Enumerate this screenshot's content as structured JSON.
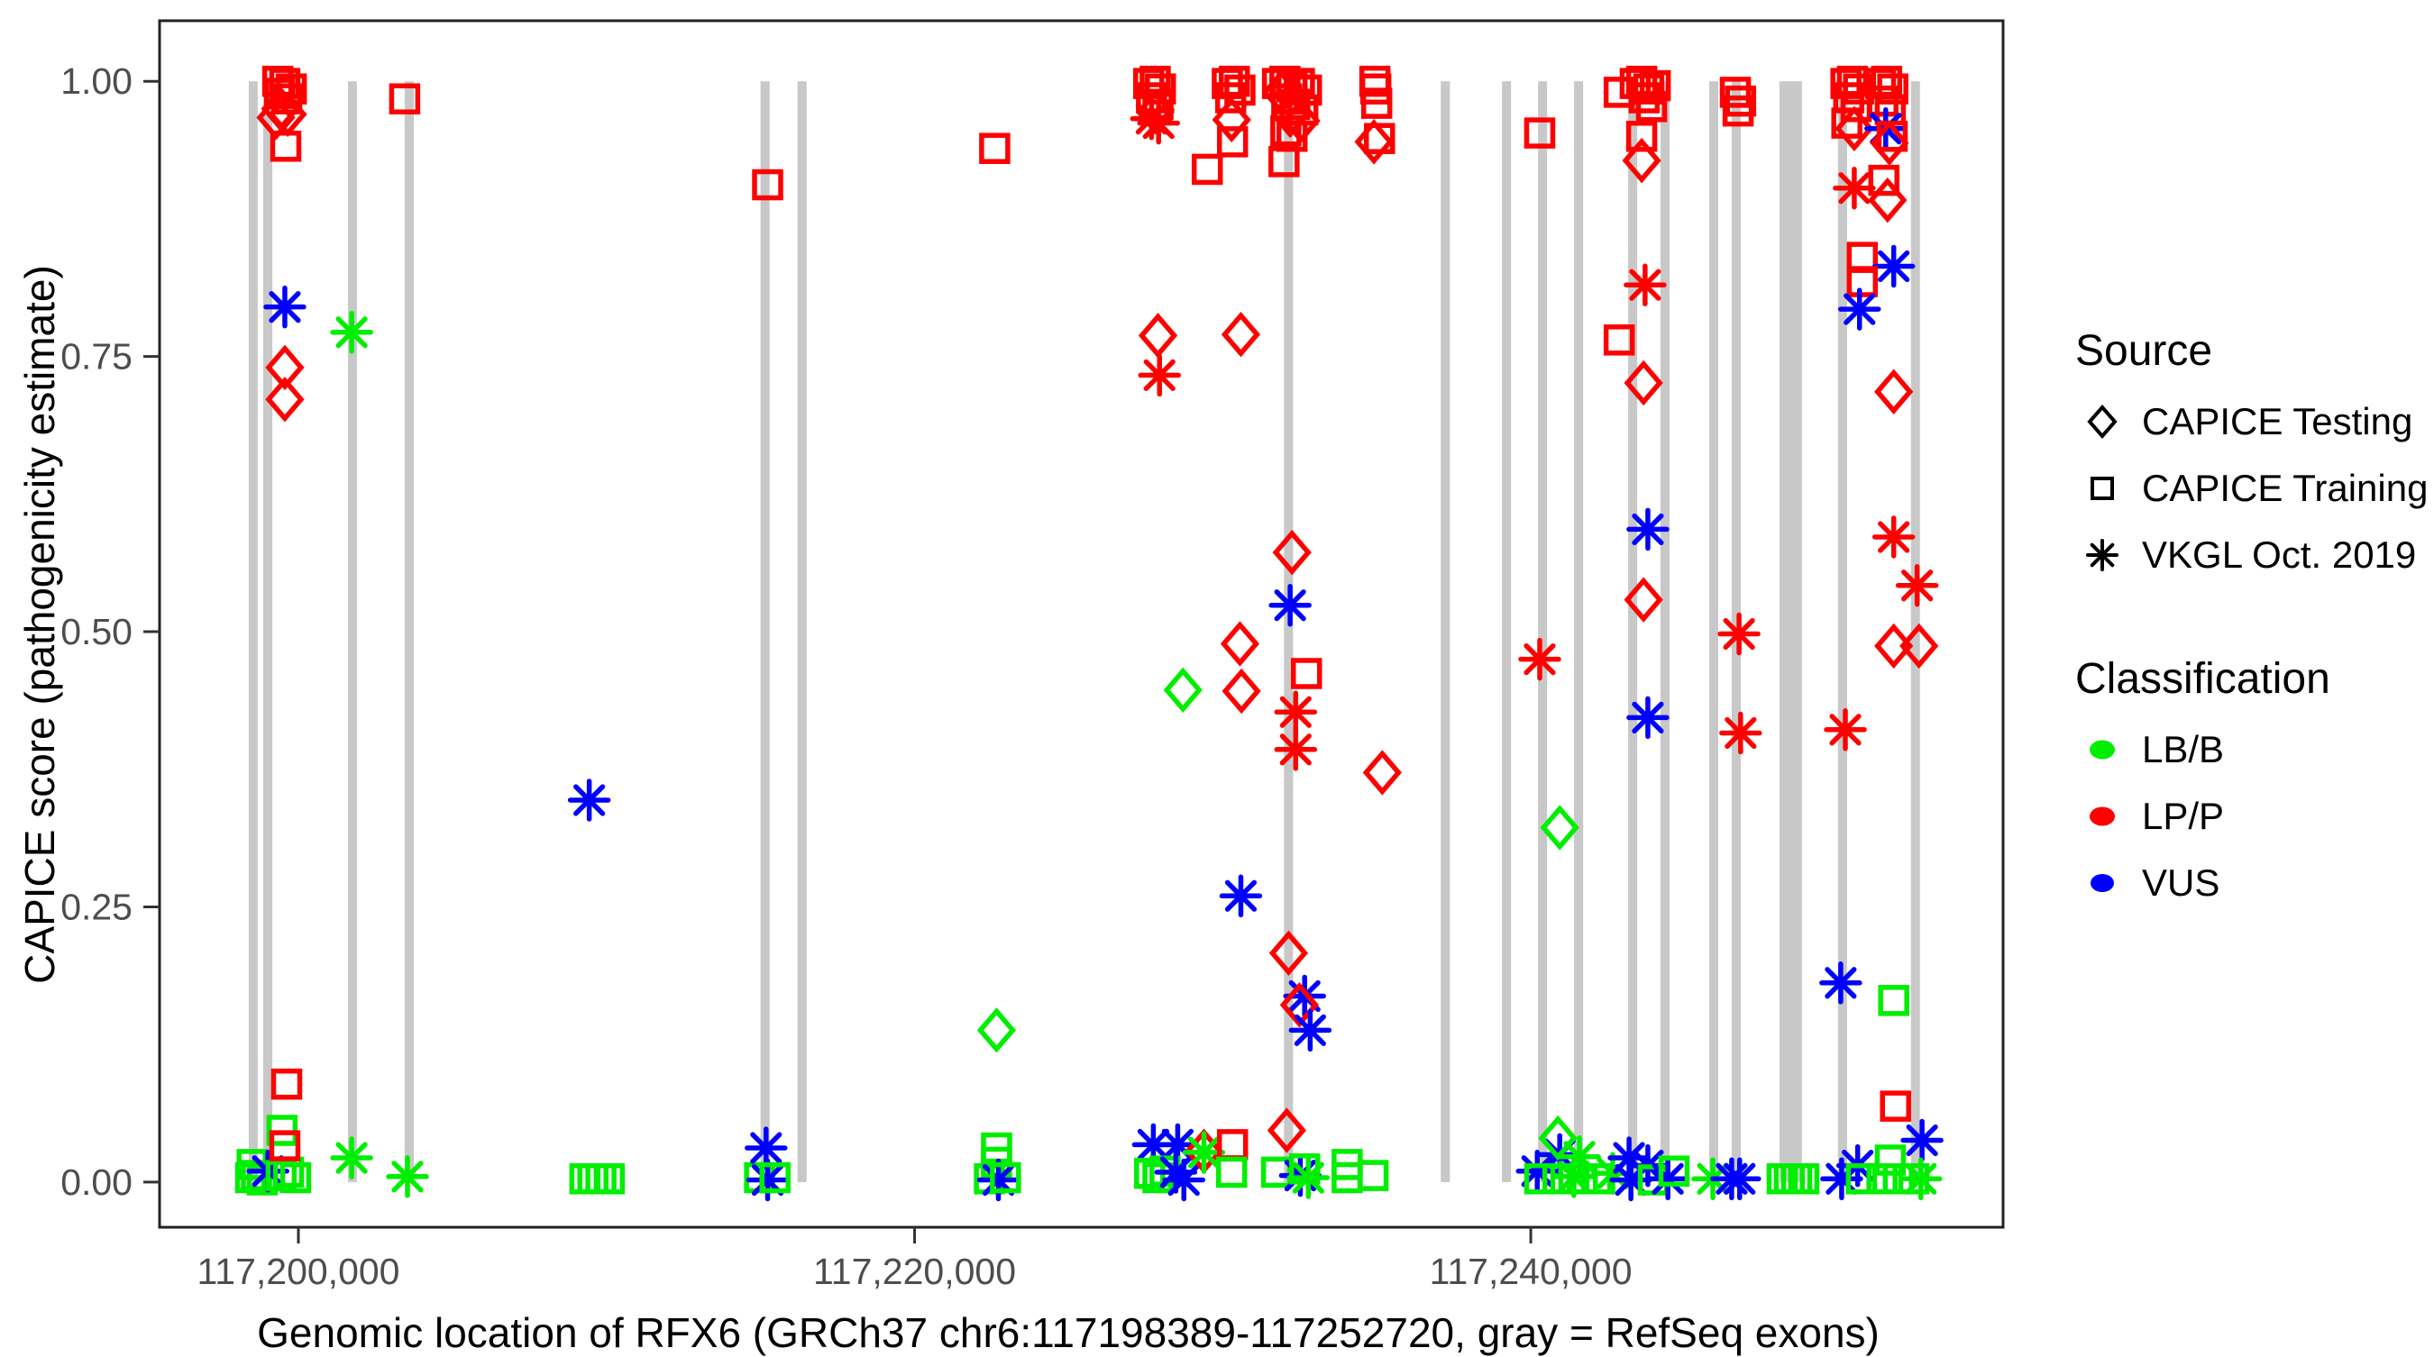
{
  "chart_data": {
    "type": "scatter",
    "title": "",
    "xlabel": "Genomic location of RFX6 (GRCh37 chr6:117198389-117252720, gray = RefSeq exons)",
    "ylabel": "CAPICE score (pathogenicity estimate)",
    "grid": "off",
    "legend_position": "right",
    "x_axis": {
      "ticks": [
        117200000,
        117220000,
        117240000
      ],
      "tick_labels": [
        "117,200,000",
        "117,220,000",
        "117,240,000"
      ],
      "range": [
        117195494,
        117255330
      ]
    },
    "y_axis": {
      "ticks": [
        0,
        0.25,
        0.5,
        0.75,
        1
      ],
      "tick_labels": [
        "0.00",
        "0.25",
        "0.50",
        "0.75",
        "1.00"
      ],
      "range": [
        -0.041,
        1.055
      ]
    },
    "exon_color": "#C8C8C8",
    "axis_text_color": "#4D4D4D",
    "panel_border_color": "#222222",
    "classification_labels": {
      "B": "LB/B",
      "P": "LP/P",
      "U": "VUS"
    },
    "classification_colors": {
      "B": "#00EE00",
      "P": "#FF0000",
      "U": "#0000FF"
    },
    "source_labels": {
      "d": "CAPICE Testing",
      "s": "CAPICE Training",
      "a": "VKGL Oct. 2019"
    },
    "source_shapes": {
      "d": "diamond",
      "s": "square",
      "a": "asterisk"
    },
    "points_format": [
      "genomic_position",
      "capice_score",
      "source_code",
      "classification_code"
    ],
    "refseq_exons": [
      [
        117198389,
        117198680
      ],
      [
        117198860,
        117199155
      ],
      [
        117201610,
        117201900
      ],
      [
        117203450,
        117203745
      ],
      [
        117215000,
        117215295
      ],
      [
        117216200,
        117216495
      ],
      [
        117231990,
        117232285
      ],
      [
        117237080,
        117237375
      ],
      [
        117239065,
        117239360
      ],
      [
        117240235,
        117240530
      ],
      [
        117241405,
        117241700
      ],
      [
        117243160,
        117243455
      ],
      [
        117244210,
        117244505
      ],
      [
        117245790,
        117246085
      ],
      [
        117246520,
        117246815
      ],
      [
        117248070,
        117248800
      ],
      [
        117249970,
        117250265
      ],
      [
        117252340,
        117252630
      ]
    ],
    "points": [
      [
        117198500,
        0.016,
        "s",
        "B"
      ],
      [
        117198450,
        0.004,
        "s",
        "B"
      ],
      [
        117198640,
        0.006,
        "s",
        "B"
      ],
      [
        117198830,
        0.002,
        "s",
        "B"
      ],
      [
        117199010,
        0.01,
        "a",
        "U"
      ],
      [
        117199440,
        0.006,
        "s",
        "B"
      ],
      [
        117199680,
        0.009,
        "s",
        "B"
      ],
      [
        117199910,
        0.004,
        "s",
        "B"
      ],
      [
        117199470,
        0.047,
        "s",
        "B"
      ],
      [
        117199560,
        0.033,
        "s",
        "P"
      ],
      [
        117199620,
        0.089,
        "s",
        "P"
      ],
      [
        117199330,
        1.0,
        "s",
        "P"
      ],
      [
        117199560,
        0.998,
        "s",
        "P"
      ],
      [
        117199770,
        0.993,
        "s",
        "P"
      ],
      [
        117199390,
        0.989,
        "s",
        "P"
      ],
      [
        117199620,
        0.984,
        "s",
        "P"
      ],
      [
        117199420,
        0.975,
        "d",
        "P"
      ],
      [
        117199650,
        0.97,
        "d",
        "P"
      ],
      [
        117199270,
        0.967,
        "d",
        "P"
      ],
      [
        117199590,
        0.941,
        "s",
        "P"
      ],
      [
        117199560,
        0.795,
        "a",
        "U"
      ],
      [
        117199560,
        0.74,
        "d",
        "P"
      ],
      [
        117199560,
        0.711,
        "d",
        "P"
      ],
      [
        117201730,
        0.772,
        "a",
        "B"
      ],
      [
        117201730,
        0.022,
        "a",
        "B"
      ],
      [
        117203450,
        0.984,
        "s",
        "P"
      ],
      [
        117203540,
        0.005,
        "a",
        "B"
      ],
      [
        117209300,
        0.003,
        "s",
        "B"
      ],
      [
        117209560,
        0.003,
        "s",
        "B"
      ],
      [
        117209820,
        0.003,
        "s",
        "B"
      ],
      [
        117210090,
        0.003,
        "s",
        "B"
      ],
      [
        117209440,
        0.347,
        "a",
        "U"
      ],
      [
        117215230,
        0.906,
        "s",
        "P"
      ],
      [
        117214970,
        0.004,
        "s",
        "B"
      ],
      [
        117215180,
        0.031,
        "a",
        "U"
      ],
      [
        117215230,
        0.002,
        "a",
        "U"
      ],
      [
        117215470,
        0.004,
        "s",
        "B"
      ],
      [
        117222600,
        0.939,
        "s",
        "P"
      ],
      [
        117222660,
        0.031,
        "s",
        "B"
      ],
      [
        117222660,
        0.018,
        "s",
        "B"
      ],
      [
        117222430,
        0.003,
        "s",
        "B"
      ],
      [
        117222720,
        0.002,
        "a",
        "U"
      ],
      [
        117222950,
        0.004,
        "s",
        "B"
      ],
      [
        117222660,
        0.138,
        "d",
        "B"
      ],
      [
        117227600,
        0.998,
        "s",
        "P"
      ],
      [
        117227810,
        1.0,
        "s",
        "P"
      ],
      [
        117227980,
        0.993,
        "s",
        "P"
      ],
      [
        117227690,
        0.985,
        "s",
        "P"
      ],
      [
        117227900,
        0.979,
        "s",
        "P"
      ],
      [
        117227810,
        0.972,
        "d",
        "P"
      ],
      [
        117227690,
        0.966,
        "a",
        "P"
      ],
      [
        117227920,
        0.962,
        "a",
        "P"
      ],
      [
        117227900,
        0.769,
        "d",
        "P"
      ],
      [
        117227950,
        0.733,
        "a",
        "P"
      ],
      [
        117227750,
        0.034,
        "a",
        "U"
      ],
      [
        117228540,
        0.034,
        "a",
        "U"
      ],
      [
        117227630,
        0.008,
        "s",
        "B"
      ],
      [
        117227900,
        0.004,
        "s",
        "B"
      ],
      [
        117228130,
        0.01,
        "s",
        "B"
      ],
      [
        117228480,
        0.009,
        "a",
        "U"
      ],
      [
        117228740,
        0.002,
        "a",
        "U"
      ],
      [
        117229390,
        0.028,
        "d",
        "P"
      ],
      [
        117229390,
        0.027,
        "a",
        "B"
      ],
      [
        117228710,
        0.447,
        "d",
        "B"
      ],
      [
        117229500,
        0.92,
        "s",
        "P"
      ],
      [
        117230150,
        0.998,
        "s",
        "P"
      ],
      [
        117230380,
        1.0,
        "s",
        "P"
      ],
      [
        117230560,
        0.992,
        "s",
        "P"
      ],
      [
        117230260,
        0.985,
        "s",
        "P"
      ],
      [
        117230290,
        0.965,
        "d",
        "P"
      ],
      [
        117230320,
        0.945,
        "s",
        "P"
      ],
      [
        117230590,
        0.77,
        "d",
        "P"
      ],
      [
        117230560,
        0.489,
        "d",
        "P"
      ],
      [
        117230610,
        0.446,
        "d",
        "P"
      ],
      [
        117230590,
        0.26,
        "a",
        "U"
      ],
      [
        117230320,
        0.034,
        "s",
        "P"
      ],
      [
        117230290,
        0.009,
        "s",
        "B"
      ],
      [
        117231780,
        0.998,
        "s",
        "P"
      ],
      [
        117232020,
        1.0,
        "s",
        "P"
      ],
      [
        117232250,
        0.995,
        "s",
        "P"
      ],
      [
        117232490,
        0.998,
        "s",
        "P"
      ],
      [
        117232720,
        0.992,
        "s",
        "P"
      ],
      [
        117232080,
        0.984,
        "s",
        "P"
      ],
      [
        117232340,
        0.979,
        "s",
        "P"
      ],
      [
        117232600,
        0.974,
        "s",
        "P"
      ],
      [
        117231900,
        0.99,
        "d",
        "P"
      ],
      [
        117232190,
        0.969,
        "d",
        "P"
      ],
      [
        117232540,
        0.964,
        "d",
        "P"
      ],
      [
        117232050,
        0.955,
        "s",
        "P"
      ],
      [
        117232250,
        0.95,
        "s",
        "P"
      ],
      [
        117231990,
        0.927,
        "s",
        "P"
      ],
      [
        117232250,
        0.572,
        "d",
        "P"
      ],
      [
        117232190,
        0.524,
        "a",
        "U"
      ],
      [
        117232720,
        0.462,
        "s",
        "P"
      ],
      [
        117232370,
        0.427,
        "a",
        "P"
      ],
      [
        117232370,
        0.393,
        "a",
        "P"
      ],
      [
        117232140,
        0.208,
        "d",
        "P"
      ],
      [
        117232660,
        0.169,
        "a",
        "U"
      ],
      [
        117232490,
        0.161,
        "d",
        "P"
      ],
      [
        117232840,
        0.138,
        "a",
        "U"
      ],
      [
        117232080,
        0.047,
        "d",
        "P"
      ],
      [
        117231750,
        0.009,
        "s",
        "B"
      ],
      [
        117232520,
        0.006,
        "a",
        "U"
      ],
      [
        117232660,
        0.012,
        "s",
        "B"
      ],
      [
        117232780,
        0.004,
        "a",
        "B"
      ],
      [
        117234040,
        0.016,
        "s",
        "B"
      ],
      [
        117234040,
        0.004,
        "s",
        "B"
      ],
      [
        117234880,
        0.006,
        "s",
        "B"
      ],
      [
        117234940,
        1.0,
        "s",
        "P"
      ],
      [
        117234970,
        0.993,
        "s",
        "P"
      ],
      [
        117235000,
        0.98,
        "s",
        "P"
      ],
      [
        117234910,
        0.945,
        "d",
        "P"
      ],
      [
        117235090,
        0.948,
        "s",
        "P"
      ],
      [
        117235180,
        0.372,
        "d",
        "P"
      ],
      [
        117240290,
        0.953,
        "s",
        "P"
      ],
      [
        117242870,
        0.99,
        "s",
        "P"
      ],
      [
        117243390,
        0.998,
        "s",
        "P"
      ],
      [
        117243600,
        1.0,
        "s",
        "P"
      ],
      [
        117243830,
        0.993,
        "s",
        "P"
      ],
      [
        117244040,
        0.996,
        "s",
        "P"
      ],
      [
        117243680,
        0.985,
        "s",
        "P"
      ],
      [
        117243920,
        0.977,
        "s",
        "P"
      ],
      [
        117243600,
        0.95,
        "s",
        "P"
      ],
      [
        117243600,
        0.928,
        "d",
        "P"
      ],
      [
        117243710,
        0.815,
        "a",
        "P"
      ],
      [
        117242870,
        0.765,
        "s",
        "P"
      ],
      [
        117243660,
        0.726,
        "d",
        "P"
      ],
      [
        117243800,
        0.593,
        "a",
        "U"
      ],
      [
        117243660,
        0.529,
        "d",
        "P"
      ],
      [
        117246760,
        0.498,
        "a",
        "P"
      ],
      [
        117240290,
        0.475,
        "a",
        "P"
      ],
      [
        117243800,
        0.422,
        "a",
        "U"
      ],
      [
        117246810,
        0.408,
        "a",
        "P"
      ],
      [
        117250210,
        0.411,
        "a",
        "P"
      ],
      [
        117240940,
        0.322,
        "d",
        "B"
      ],
      [
        117246640,
        0.99,
        "s",
        "P"
      ],
      [
        117246810,
        0.982,
        "s",
        "P"
      ],
      [
        117246730,
        0.973,
        "s",
        "P"
      ],
      [
        117250230,
        0.998,
        "s",
        "P"
      ],
      [
        117250440,
        1.0,
        "s",
        "P"
      ],
      [
        117250640,
        0.993,
        "s",
        "P"
      ],
      [
        117250320,
        0.985,
        "s",
        "P"
      ],
      [
        117250560,
        0.977,
        "s",
        "P"
      ],
      [
        117250260,
        0.962,
        "s",
        "P"
      ],
      [
        117250500,
        0.957,
        "d",
        "P"
      ],
      [
        117251350,
        0.998,
        "s",
        "P"
      ],
      [
        117251550,
        1.0,
        "s",
        "P"
      ],
      [
        117251750,
        0.993,
        "s",
        "P"
      ],
      [
        117251430,
        0.982,
        "s",
        "P"
      ],
      [
        117251670,
        0.974,
        "s",
        "P"
      ],
      [
        117251520,
        0.957,
        "a",
        "U"
      ],
      [
        117251640,
        0.944,
        "d",
        "P"
      ],
      [
        117251730,
        0.95,
        "s",
        "P"
      ],
      [
        117250500,
        0.903,
        "a",
        "P"
      ],
      [
        117251460,
        0.91,
        "s",
        "P"
      ],
      [
        117251580,
        0.892,
        "d",
        "P"
      ],
      [
        117250760,
        0.84,
        "s",
        "P"
      ],
      [
        117251780,
        0.832,
        "a",
        "U"
      ],
      [
        117250760,
        0.818,
        "s",
        "P"
      ],
      [
        117250670,
        0.793,
        "a",
        "U"
      ],
      [
        117251780,
        0.718,
        "d",
        "P"
      ],
      [
        117251780,
        0.586,
        "a",
        "P"
      ],
      [
        117252540,
        0.542,
        "a",
        "P"
      ],
      [
        117251780,
        0.487,
        "d",
        "P"
      ],
      [
        117252600,
        0.487,
        "d",
        "P"
      ],
      [
        117250060,
        0.181,
        "a",
        "U"
      ],
      [
        117251780,
        0.165,
        "s",
        "B"
      ],
      [
        117251840,
        0.069,
        "s",
        "P"
      ],
      [
        117252700,
        0.038,
        "a",
        "U"
      ],
      [
        117251670,
        0.02,
        "s",
        "B"
      ],
      [
        117250610,
        0.015,
        "a",
        "U"
      ],
      [
        117250090,
        0.003,
        "a",
        "U"
      ],
      [
        117250730,
        0.003,
        "s",
        "B"
      ],
      [
        117251400,
        0.003,
        "s",
        "B"
      ],
      [
        117251930,
        0.003,
        "s",
        "B"
      ],
      [
        117252430,
        0.003,
        "s",
        "B"
      ],
      [
        117252660,
        0.003,
        "a",
        "B"
      ],
      [
        117240210,
        0.01,
        "a",
        "U"
      ],
      [
        117240940,
        0.025,
        "a",
        "U"
      ],
      [
        117241580,
        0.023,
        "a",
        "B"
      ],
      [
        117240290,
        0.003,
        "s",
        "B"
      ],
      [
        117240880,
        0.003,
        "s",
        "B"
      ],
      [
        117241400,
        0.003,
        "s",
        "B"
      ],
      [
        117241400,
        0.005,
        "a",
        "B"
      ],
      [
        117241670,
        0.003,
        "s",
        "B"
      ],
      [
        117242140,
        0.003,
        "s",
        "B"
      ],
      [
        117242660,
        0.008,
        "a",
        "B"
      ],
      [
        117243190,
        0.022,
        "a",
        "U"
      ],
      [
        117243250,
        0.002,
        "a",
        "U"
      ],
      [
        117243800,
        0.015,
        "a",
        "U"
      ],
      [
        117243980,
        0.002,
        "s",
        "B"
      ],
      [
        117244450,
        0.003,
        "a",
        "U"
      ],
      [
        117244650,
        0.01,
        "s",
        "B"
      ],
      [
        117245910,
        0.003,
        "a",
        "B"
      ],
      [
        117246520,
        0.003,
        "a",
        "U"
      ],
      [
        117246780,
        0.003,
        "a",
        "U"
      ],
      [
        117248160,
        0.003,
        "s",
        "B"
      ],
      [
        117248390,
        0.003,
        "s",
        "B"
      ],
      [
        117248630,
        0.003,
        "s",
        "B"
      ],
      [
        117248860,
        0.003,
        "s",
        "B"
      ],
      [
        117240880,
        0.04,
        "d",
        "B"
      ]
    ]
  },
  "legend": {
    "source": {
      "title": "Source",
      "items": [
        {
          "label": "CAPICE Testing",
          "shape": "diamond"
        },
        {
          "label": "CAPICE Training",
          "shape": "square"
        },
        {
          "label": "VKGL Oct. 2019",
          "shape": "asterisk"
        }
      ]
    },
    "classification": {
      "title": "Classification",
      "items": [
        {
          "label": "LB/B",
          "color": "#00EE00"
        },
        {
          "label": "LP/P",
          "color": "#FF0000"
        },
        {
          "label": "VUS",
          "color": "#0000FF"
        }
      ]
    }
  }
}
